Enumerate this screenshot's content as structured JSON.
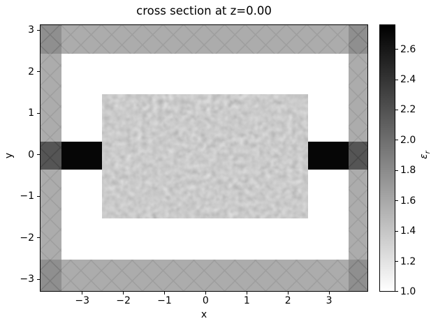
{
  "figure": {
    "title": "cross section at z=0.00"
  },
  "axes": {
    "xlabel": "x",
    "ylabel": "y",
    "x_tick_labels": [
      "−3",
      "−2",
      "−1",
      "0",
      "1",
      "2",
      "3"
    ],
    "y_tick_labels": [
      "3",
      "2",
      "1",
      "0",
      "−1",
      "−2",
      "−3"
    ]
  },
  "colorbar": {
    "label_base": "ε",
    "label_sub": "r",
    "tick_labels": [
      "2.6",
      "2.4",
      "2.2",
      "2.0",
      "1.8",
      "1.6",
      "1.4",
      "1.2",
      "1.0"
    ],
    "min": 1.0,
    "max": 2.76,
    "colormap": "binary (low=white, high=black)"
  },
  "chart_data": {
    "type": "heatmap",
    "title": "cross section at z=0.00",
    "xlabel": "x",
    "ylabel": "y",
    "xlim": [
      -4.0,
      3.97
    ],
    "ylim": [
      -3.37,
      3.1
    ],
    "x_ticks": [
      -3,
      -2,
      -1,
      0,
      1,
      2,
      3
    ],
    "y_ticks": [
      3,
      2,
      1,
      0,
      -1,
      -2,
      -3
    ],
    "grid": false,
    "colorbar": {
      "label": "epsilon_r (relative permittivity)",
      "range": [
        1.0,
        2.76
      ],
      "ticks": [
        2.6,
        2.4,
        2.2,
        2.0,
        1.8,
        1.6,
        1.4,
        1.2,
        1.0
      ],
      "colormap": "binary (white at 1.0, black at max)",
      "position": "right"
    },
    "regions": [
      {
        "name": "background",
        "x": "full",
        "y": "full",
        "eps_r": 1.0,
        "appearance": "white"
      },
      {
        "name": "random-medium-block",
        "x": [
          -2.5,
          2.5
        ],
        "y": [
          -1.5,
          1.5
        ],
        "eps_r": "≈1.8 ± 0.15 (smoothed random field)",
        "appearance": "gray noise"
      },
      {
        "name": "waveguide-left",
        "x": [
          -4.0,
          -2.5
        ],
        "y": [
          -0.35,
          0.35
        ],
        "eps_r": 2.75,
        "appearance": "black"
      },
      {
        "name": "waveguide-right",
        "x": [
          2.5,
          3.97
        ],
        "y": [
          -0.35,
          0.35
        ],
        "eps_r": 2.75,
        "appearance": "black"
      },
      {
        "name": "absorber-band-top",
        "x": "full",
        "y": [
          2.4,
          3.1
        ],
        "appearance": "translucent gray with X crosshatch"
      },
      {
        "name": "absorber-band-bottom",
        "x": "full",
        "y": [
          -3.37,
          -2.6
        ],
        "appearance": "translucent gray with X crosshatch"
      },
      {
        "name": "absorber-band-left",
        "x": [
          -4.0,
          -3.48
        ],
        "y": "full",
        "appearance": "translucent gray with X crosshatch"
      },
      {
        "name": "absorber-band-right",
        "x": [
          3.5,
          3.97
        ],
        "y": "full",
        "appearance": "translucent gray with X crosshatch"
      }
    ]
  }
}
